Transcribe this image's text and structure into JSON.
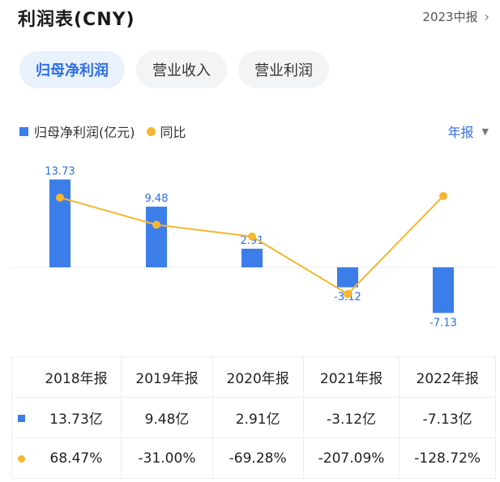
{
  "header": {
    "title": "利润表(CNY)",
    "period": "2023中报",
    "chevron": "›"
  },
  "tabs": [
    {
      "label": "归母净利润",
      "active": true
    },
    {
      "label": "营业收入",
      "active": false
    },
    {
      "label": "营业利润",
      "active": false
    }
  ],
  "legend": {
    "bar_label": "归母净利润(亿元)",
    "line_label": "同比"
  },
  "annual_select": {
    "label": "年报",
    "icon": "caret-down-icon"
  },
  "colors": {
    "bar": "#3c7ee9",
    "line": "#f5b731",
    "positive": "#e5484d",
    "negative": "#2fa66b",
    "label": "#2f6fe4"
  },
  "chart_data": {
    "type": "bar",
    "categories": [
      "2018年报",
      "2019年报",
      "2020年报",
      "2021年报",
      "2022年报"
    ],
    "series": [
      {
        "name": "归母净利润(亿元)",
        "type": "bar",
        "values": [
          13.73,
          9.48,
          2.91,
          -3.12,
          -7.13
        ]
      },
      {
        "name": "同比",
        "type": "line",
        "values": [
          68.47,
          -31.0,
          -69.28,
          -207.09,
          -128.72
        ]
      }
    ],
    "data_labels": [
      "13.73",
      "9.48",
      "2.91",
      "-3.12",
      "-7.13"
    ],
    "line_shape": [
      0.04,
      0.76,
      1.07,
      2.59,
      0.0
    ]
  },
  "table": {
    "headers": [
      "2018年报",
      "2019年报",
      "2020年报",
      "2021年报",
      "2022年报"
    ],
    "profit_row": [
      "13.73亿",
      "9.48亿",
      "2.91亿",
      "-3.12亿",
      "-7.13亿"
    ],
    "yoy_row": [
      "68.47%",
      "-31.00%",
      "-69.28%",
      "-207.09%",
      "-128.72%"
    ],
    "yoy_sign": [
      "pos",
      "neg",
      "neg",
      "neg",
      "neg"
    ]
  }
}
